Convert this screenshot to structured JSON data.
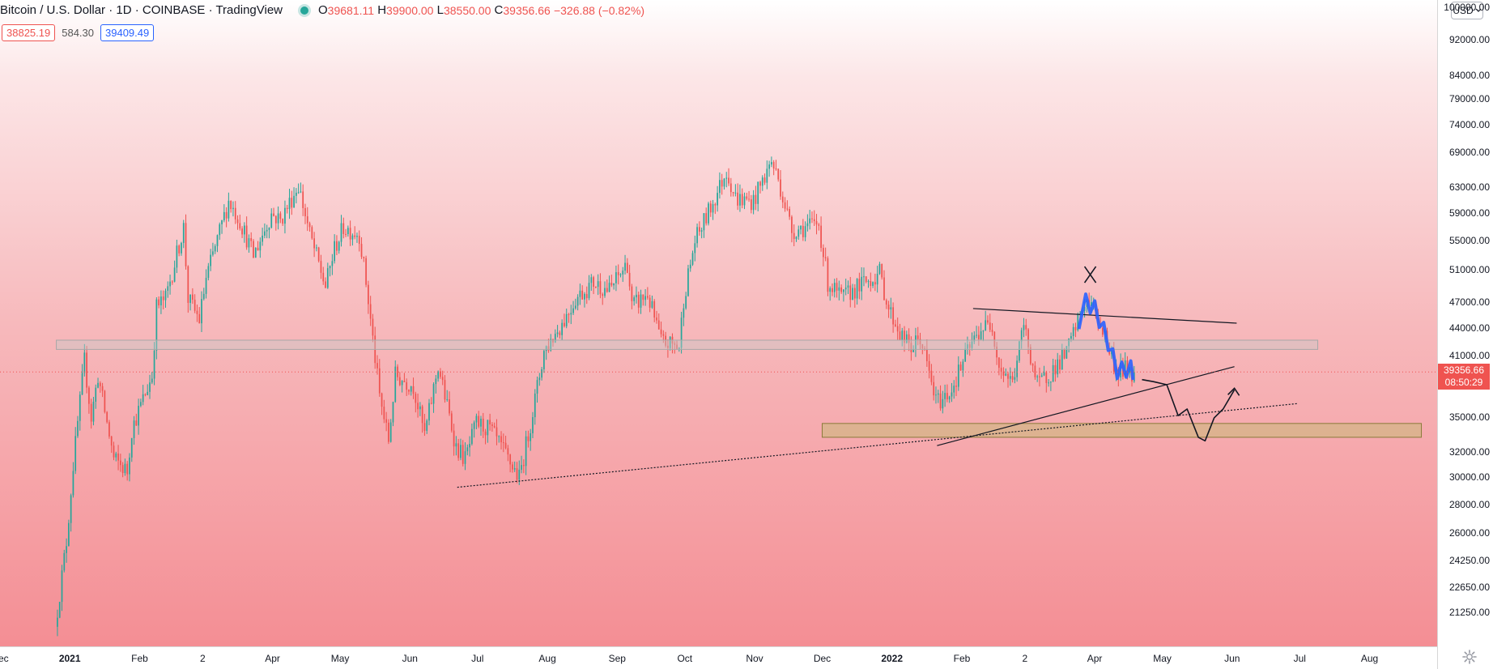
{
  "header": {
    "symbol_title": "Bitcoin / U.S. Dollar · 1D · COINBASE · TradingView",
    "ohlc": {
      "o_label": "O",
      "o": "39681.11",
      "h_label": "H",
      "h": "39900.00",
      "l_label": "L",
      "l": "38550.00",
      "c_label": "C",
      "c": "39356.66",
      "change": "−326.88 (−0.82%)"
    },
    "sell_price": "38825.19",
    "spread": "584.30",
    "buy_price": "39409.49",
    "currency": "USD"
  },
  "price_label": {
    "price": "39356.66",
    "countdown": "08:50:29"
  },
  "icons": [
    "live-dot-icon",
    "chevron-down-icon",
    "gear-icon"
  ],
  "colors": {
    "up": "#26a69a",
    "down": "#ef5350",
    "drawing_blue": "#2962ff",
    "zone_gray": "#c8c8c8",
    "zone_tan": "#c8b878",
    "bg_top": "#ffffff",
    "bg_bottom": "#f48e94"
  },
  "chart_data": {
    "type": "candlestick",
    "title": "Bitcoin / U.S. Dollar · 1D · COINBASE · TradingView",
    "xlabel": "",
    "ylabel": "",
    "y_scale": "log",
    "ylim": [
      19500,
      102000
    ],
    "y_ticks": [
      "100000.00",
      "92000.00",
      "84000.00",
      "79000.00",
      "74000.00",
      "69000.00",
      "63000.00",
      "59000.00",
      "55000.00",
      "51000.00",
      "47000.00",
      "44000.00",
      "41000.00",
      "35000.00",
      "32000.00",
      "30000.00",
      "28000.00",
      "26000.00",
      "24250.00",
      "22650.00",
      "21250.00"
    ],
    "x_range": [
      "2020-12-01",
      "2022-08-31"
    ],
    "x_ticks": [
      {
        "date": "2020-12-01",
        "label": "Dec"
      },
      {
        "date": "2021-01-01",
        "label": "2021"
      },
      {
        "date": "2021-02-01",
        "label": "Feb"
      },
      {
        "date": "2021-03-01",
        "label": "2"
      },
      {
        "date": "2021-04-01",
        "label": "Apr"
      },
      {
        "date": "2021-05-01",
        "label": "May"
      },
      {
        "date": "2021-06-01",
        "label": "Jun"
      },
      {
        "date": "2021-07-01",
        "label": "Jul"
      },
      {
        "date": "2021-08-01",
        "label": "Aug"
      },
      {
        "date": "2021-09-01",
        "label": "Sep"
      },
      {
        "date": "2021-10-01",
        "label": "Oct"
      },
      {
        "date": "2021-11-01",
        "label": "Nov"
      },
      {
        "date": "2021-12-01",
        "label": "Dec"
      },
      {
        "date": "2022-01-01",
        "label": "2022"
      },
      {
        "date": "2022-02-01",
        "label": "Feb"
      },
      {
        "date": "2022-03-01",
        "label": "2"
      },
      {
        "date": "2022-04-01",
        "label": "Apr"
      },
      {
        "date": "2022-05-01",
        "label": "May"
      },
      {
        "date": "2022-06-01",
        "label": "Jun"
      },
      {
        "date": "2022-07-01",
        "label": "Jul"
      },
      {
        "date": "2022-08-01",
        "label": "Aug"
      }
    ],
    "anchors": [
      [
        "2020-12-26",
        20500
      ],
      [
        "2020-12-31",
        25500
      ],
      [
        "2021-01-03",
        31000
      ],
      [
        "2021-01-08",
        40500
      ],
      [
        "2021-01-11",
        35000
      ],
      [
        "2021-01-14",
        39000
      ],
      [
        "2021-01-21",
        31500
      ],
      [
        "2021-01-27",
        30500
      ],
      [
        "2021-01-29",
        34000
      ],
      [
        "2021-02-07",
        39000
      ],
      [
        "2021-02-09",
        46500
      ],
      [
        "2021-02-13",
        47500
      ],
      [
        "2021-02-21",
        57000
      ],
      [
        "2021-02-23",
        47500
      ],
      [
        "2021-02-28",
        45000
      ],
      [
        "2021-03-03",
        50000
      ],
      [
        "2021-03-13",
        61000
      ],
      [
        "2021-03-18",
        58000
      ],
      [
        "2021-03-24",
        53000
      ],
      [
        "2021-04-01",
        59000
      ],
      [
        "2021-04-05",
        58000
      ],
      [
        "2021-04-13",
        63500
      ],
      [
        "2021-04-18",
        56000
      ],
      [
        "2021-04-25",
        49000
      ],
      [
        "2021-04-29",
        54000
      ],
      [
        "2021-05-03",
        57000
      ],
      [
        "2021-05-10",
        56000
      ],
      [
        "2021-05-13",
        49500
      ],
      [
        "2021-05-19",
        37000
      ],
      [
        "2021-05-23",
        33000
      ],
      [
        "2021-05-26",
        39000
      ],
      [
        "2021-06-03",
        38000
      ],
      [
        "2021-06-08",
        33500
      ],
      [
        "2021-06-14",
        40000
      ],
      [
        "2021-06-22",
        32500
      ],
      [
        "2021-06-26",
        31500
      ],
      [
        "2021-07-01",
        34500
      ],
      [
        "2021-07-07",
        34000
      ],
      [
        "2021-07-15",
        31500
      ],
      [
        "2021-07-20",
        30000
      ],
      [
        "2021-07-25",
        34500
      ],
      [
        "2021-07-31",
        41500
      ],
      [
        "2021-08-09",
        45000
      ],
      [
        "2021-08-14",
        47500
      ],
      [
        "2021-08-22",
        49500
      ],
      [
        "2021-08-29",
        48500
      ],
      [
        "2021-09-06",
        52000
      ],
      [
        "2021-09-08",
        46500
      ],
      [
        "2021-09-15",
        48000
      ],
      [
        "2021-09-21",
        42500
      ],
      [
        "2021-09-29",
        42000
      ],
      [
        "2021-10-01",
        47500
      ],
      [
        "2021-10-06",
        55000
      ],
      [
        "2021-10-15",
        61500
      ],
      [
        "2021-10-20",
        66000
      ],
      [
        "2021-10-24",
        61500
      ],
      [
        "2021-10-28",
        61000
      ],
      [
        "2021-11-01",
        61000
      ],
      [
        "2021-11-09",
        67500
      ],
      [
        "2021-11-12",
        64500
      ],
      [
        "2021-11-18",
        56500
      ],
      [
        "2021-11-23",
        57000
      ],
      [
        "2021-11-30",
        57500
      ],
      [
        "2021-12-04",
        49500
      ],
      [
        "2021-12-10",
        47500
      ],
      [
        "2021-12-15",
        48500
      ],
      [
        "2021-12-27",
        50700
      ],
      [
        "2021-12-31",
        46300
      ],
      [
        "2022-01-06",
        43000
      ],
      [
        "2022-01-10",
        41800
      ],
      [
        "2022-01-14",
        43000
      ],
      [
        "2022-01-21",
        36500
      ],
      [
        "2022-01-24",
        36700
      ],
      [
        "2022-01-28",
        37700
      ],
      [
        "2022-02-04",
        41500
      ],
      [
        "2022-02-10",
        44000
      ],
      [
        "2022-02-15",
        44500
      ],
      [
        "2022-02-18",
        40000
      ],
      [
        "2022-02-24",
        38300
      ],
      [
        "2022-03-01",
        44400
      ],
      [
        "2022-03-07",
        38000
      ],
      [
        "2022-03-14",
        39600
      ],
      [
        "2022-03-20",
        41300
      ],
      [
        "2022-03-28",
        47100
      ],
      [
        "2022-04-01",
        46300
      ],
      [
        "2022-04-06",
        43200
      ],
      [
        "2022-04-11",
        39500
      ],
      [
        "2022-04-17",
        39700
      ],
      [
        "2022-04-18",
        39356.66
      ]
    ],
    "current_price": 39356.66,
    "drawings": {
      "resistance_zone": {
        "from": "2020-12-26",
        "to": "2022-07-09",
        "low": 41700,
        "high": 42700
      },
      "support_zone": {
        "from": "2021-12-01",
        "to": "2022-08-24",
        "low": 33300,
        "high": 34500
      },
      "upper_trendline": {
        "points": [
          [
            "2022-02-06",
            46300
          ],
          [
            "2022-06-03",
            44600
          ]
        ]
      },
      "rising_trendline": {
        "points": [
          [
            "2022-01-21",
            32600
          ],
          [
            "2022-06-02",
            39900
          ]
        ]
      },
      "dotted_trendline": {
        "points": [
          [
            "2021-06-22",
            29300
          ],
          [
            "2022-06-30",
            36300
          ]
        ]
      }
    }
  }
}
